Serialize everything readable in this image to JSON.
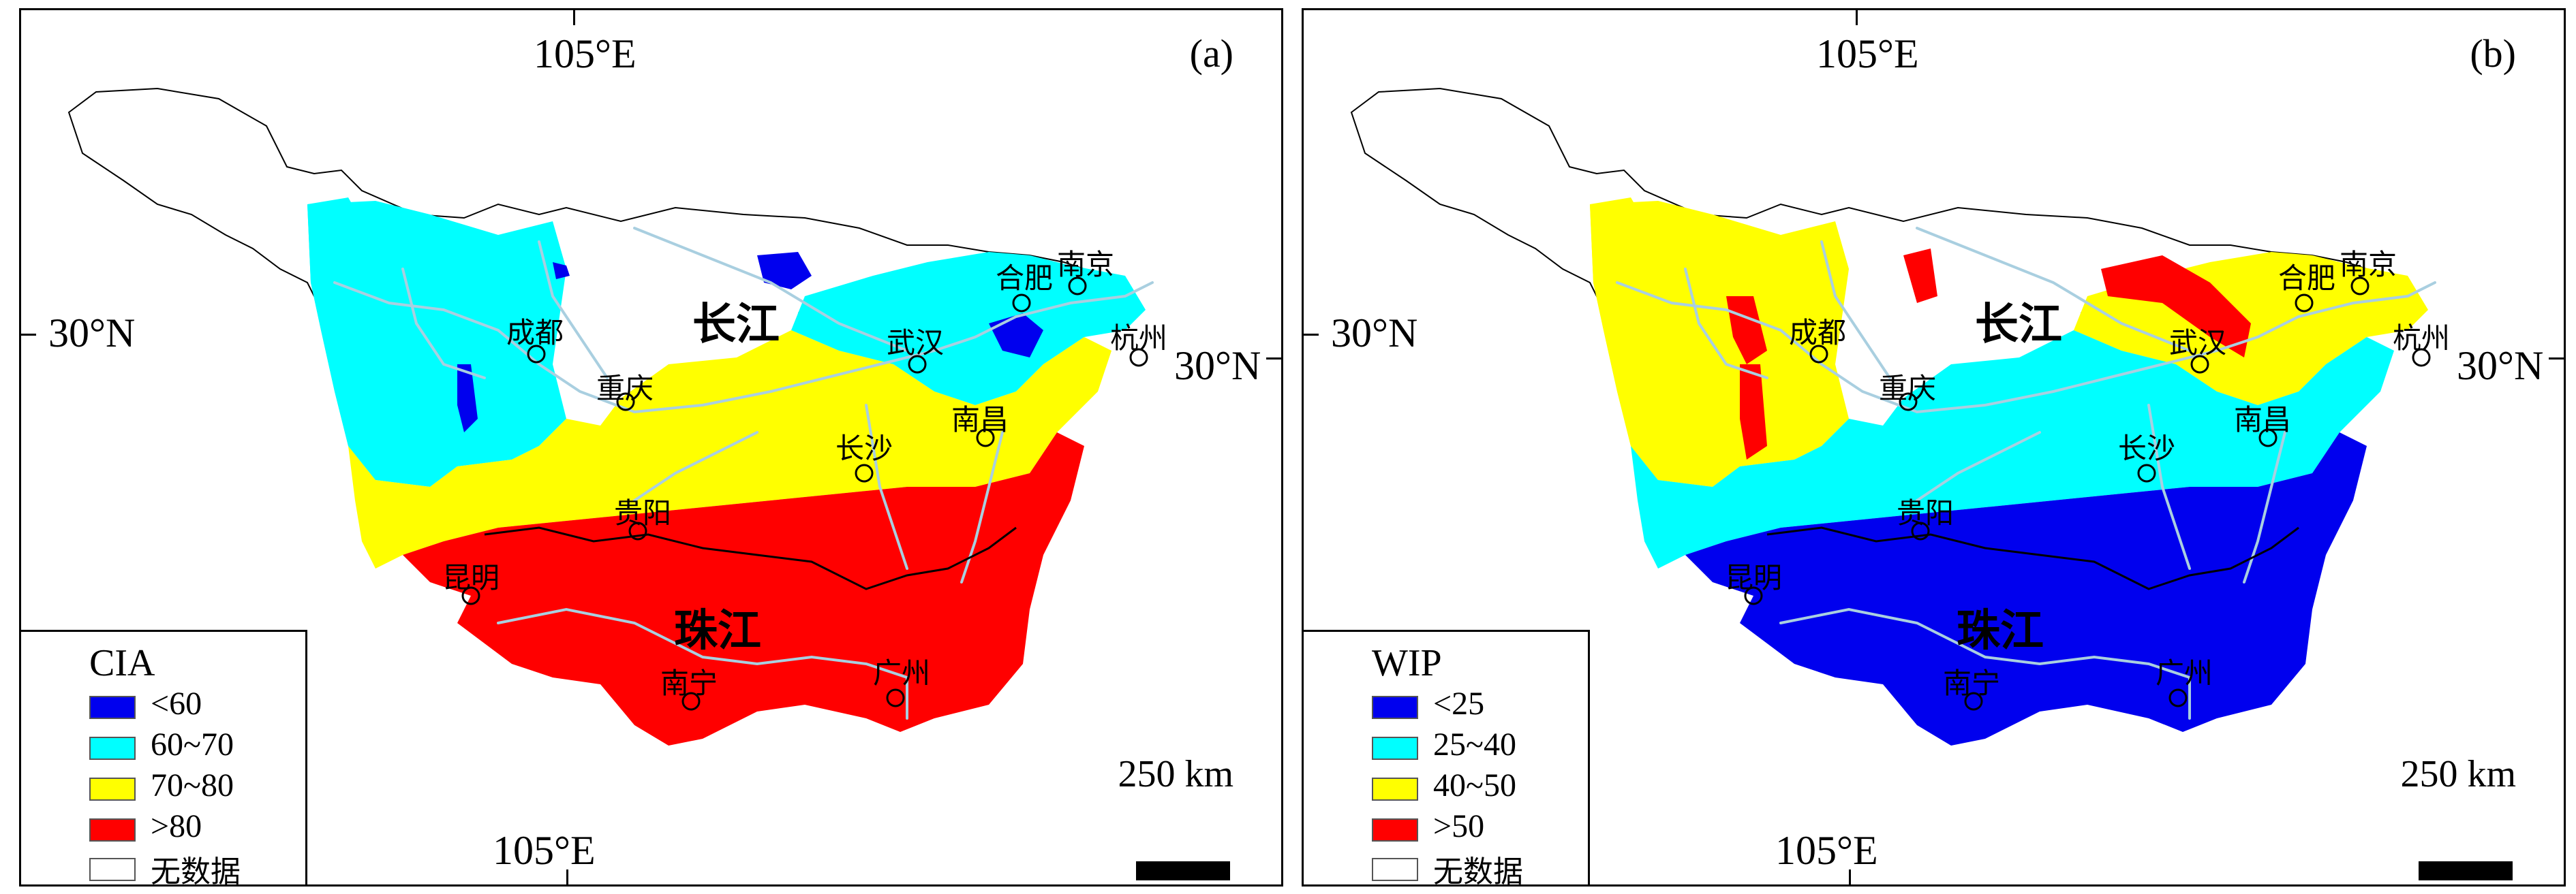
{
  "panels": [
    {
      "id": "a",
      "label": "(a)",
      "legend": {
        "title": "CIA",
        "items": [
          {
            "label": "<60",
            "color": "#0000ee"
          },
          {
            "label": "60~70",
            "color": "#00ffff"
          },
          {
            "label": "70~80",
            "color": "#ffff00"
          },
          {
            "label": ">80",
            "color": "#ff0000"
          },
          {
            "label": "无数据",
            "color": "#ffffff"
          }
        ]
      },
      "zone_colors": {
        "north": "#00ffff",
        "central": "#ffff00",
        "south": "#ff0000",
        "patch": "#0000ee"
      }
    },
    {
      "id": "b",
      "label": "(b)",
      "legend": {
        "title": "WIP",
        "items": [
          {
            "label": "<25",
            "color": "#0000ee"
          },
          {
            "label": "25~40",
            "color": "#00ffff"
          },
          {
            "label": "40~50",
            "color": "#ffff00"
          },
          {
            "label": ">50",
            "color": "#ff0000"
          },
          {
            "label": "无数据",
            "color": "#ffffff"
          }
        ]
      },
      "zone_colors": {
        "north": "#ffff00",
        "central": "#00ffff",
        "south": "#0000ee",
        "patch": "#ff0000"
      }
    }
  ],
  "axes": {
    "lon_top": "105°E",
    "lon_bottom": "105°E",
    "lat_left": "30°N",
    "lat_right": "30°N"
  },
  "cities": [
    "成都",
    "重庆",
    "贵阳",
    "昆明",
    "南宁",
    "长沙",
    "武汉",
    "南昌",
    "合肥",
    "南京",
    "杭州",
    "广州"
  ],
  "rivers": {
    "yangtze": "长江",
    "pearl": "珠江"
  },
  "scale": {
    "label": "250 km"
  },
  "river_color": "#a9cfe0",
  "basin_outline_color": "#000000"
}
